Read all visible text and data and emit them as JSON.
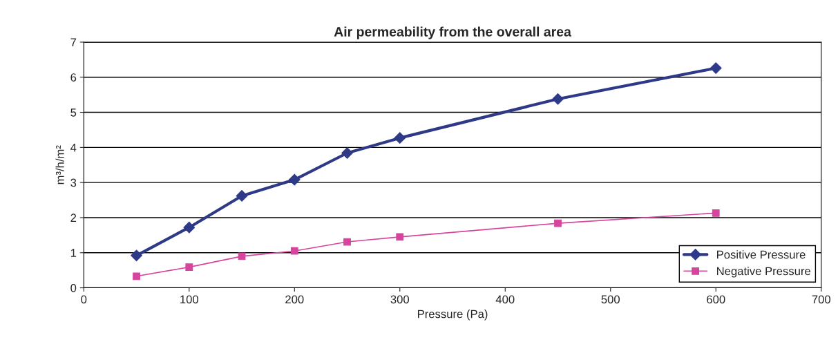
{
  "chart_data": {
    "type": "line",
    "title": "Air permeability from the overall area",
    "xlabel": "Pressure (Pa)",
    "ylabel": "m³/h/m²",
    "x": [
      50,
      100,
      150,
      200,
      250,
      300,
      450,
      600
    ],
    "series": [
      {
        "name": "Positive Pressure",
        "color": "#2e3a87",
        "marker": "diamond",
        "values": [
          0.92,
          1.72,
          2.62,
          3.08,
          3.84,
          4.27,
          5.38,
          6.26
        ]
      },
      {
        "name": "Negative Pressure",
        "color": "#d6449e",
        "marker": "square",
        "values": [
          0.33,
          0.59,
          0.9,
          1.05,
          1.31,
          1.45,
          1.84,
          2.13
        ]
      }
    ],
    "xlim": [
      0,
      700
    ],
    "xticks": [
      0,
      100,
      200,
      300,
      400,
      500,
      600,
      700
    ],
    "ylim": [
      0,
      7
    ],
    "yticks": [
      0,
      1,
      2,
      3,
      4,
      5,
      6,
      7
    ],
    "grid": "y",
    "legend": "bottom right",
    "line_style": "solid"
  }
}
